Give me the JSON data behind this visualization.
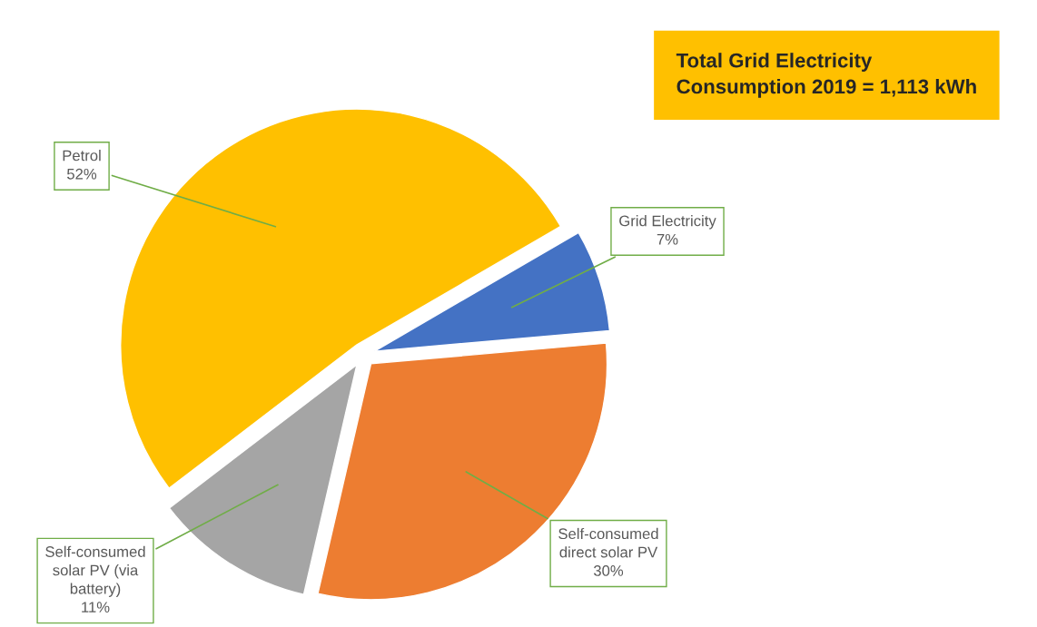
{
  "chart_data": {
    "type": "pie",
    "categories": [
      "Self-consumed\ndirect solar PV",
      "Grid Electricity",
      "Petrol",
      "Self-consumed\nsolar PV (via\nbattery)"
    ],
    "values": [
      30,
      7,
      52,
      11
    ],
    "colors": [
      "#ed7d31",
      "#4472c4",
      "#ffc000",
      "#a5a5a5"
    ],
    "value_labels": [
      "30%",
      "7%",
      "52%",
      "11%"
    ],
    "annotations": [
      "Total Grid Electricity\nConsumption 2019 = 1,113 kWh"
    ]
  }
}
